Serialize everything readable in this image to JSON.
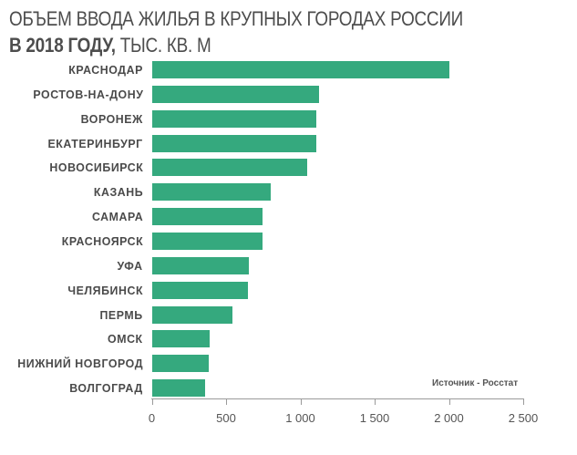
{
  "header": {
    "title_line1": "ОБЪЕМ ВВОДА ЖИЛЬЯ В КРУПНЫХ ГОРОДАХ РОССИИ",
    "title_line2_bold": "В 2018 ГОДУ,",
    "title_line2_rest": " ТЫС. КВ. М"
  },
  "source": "Источник - Росстат",
  "colors": {
    "bar": "#35a97e",
    "text": "#4a4a4a",
    "axis": "#9a9a9a"
  },
  "chart_data": {
    "type": "bar",
    "orientation": "horizontal",
    "title": "ОБЪЕМ ВВОДА ЖИЛЬЯ В КРУПНЫХ ГОРОДАХ РОССИИ В 2018 ГОДУ, ТЫС. КВ. М",
    "xlabel": "",
    "ylabel": "",
    "categories": [
      "КРАСНОДАР",
      "РОСТОВ-НА-ДОНУ",
      "ВОРОНЕЖ",
      "ЕКАТЕРИНБУРГ",
      "НОВОСИБИРСК",
      "КАЗАНЬ",
      "САМАРА",
      "КРАСНОЯРСК",
      "УФА",
      "ЧЕЛЯБИНСК",
      "ПЕРМЬ",
      "ОМСК",
      "НИЖНИЙ НОВГОРОД",
      "ВОЛГОГРАД"
    ],
    "values": [
      2000,
      1125,
      1105,
      1105,
      1045,
      800,
      740,
      740,
      650,
      645,
      540,
      385,
      380,
      355
    ],
    "xlim": [
      0,
      2500
    ],
    "xticks": [
      0,
      500,
      1000,
      1500,
      2000,
      2500
    ],
    "xtick_labels": [
      "0",
      "500",
      "1 000",
      "1 500",
      "2 000",
      "2 500"
    ],
    "grid": false,
    "legend": null,
    "annotations": [
      "Источник - Росстат"
    ]
  }
}
